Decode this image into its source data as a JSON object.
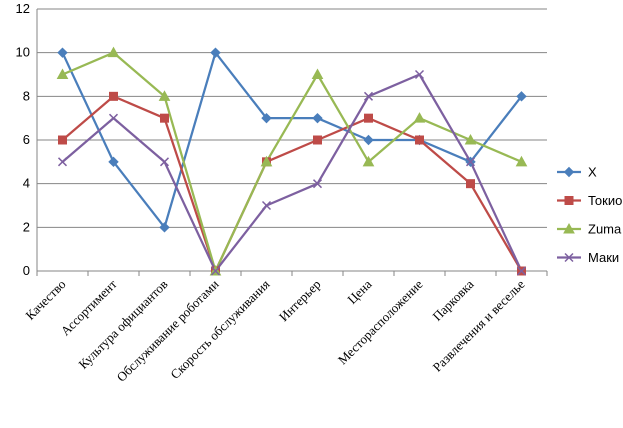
{
  "chart_data": {
    "type": "line",
    "categories": [
      "Качество",
      "Ассортимент",
      "Культура официантов",
      "Обслуживание роботами",
      "Скорость обслуживания",
      "Интерьер",
      "Цена",
      "Месторасположение",
      "Парковка",
      "Развлечения и веселье"
    ],
    "ylim": [
      0,
      12
    ],
    "yticks": [
      0,
      2,
      4,
      6,
      8,
      10,
      12
    ],
    "grid": "horizontal",
    "legend_position": "right",
    "title": "",
    "xlabel": "",
    "ylabel": "",
    "series": [
      {
        "name": "X",
        "color": "#4a7ebb",
        "marker": "diamond",
        "values": [
          10,
          5,
          2,
          10,
          7,
          7,
          6,
          6,
          5,
          8
        ]
      },
      {
        "name": "Токио",
        "color": "#be4b48",
        "marker": "square",
        "values": [
          6,
          8,
          7,
          0,
          5,
          6,
          7,
          6,
          4,
          0
        ]
      },
      {
        "name": "Zuma",
        "color": "#98b954",
        "marker": "triangle",
        "values": [
          9,
          10,
          8,
          0,
          5,
          9,
          5,
          7,
          6,
          5
        ]
      },
      {
        "name": "Маки",
        "color": "#7d60a0",
        "marker": "x",
        "values": [
          5,
          7,
          5,
          0,
          3,
          4,
          8,
          9,
          5,
          0
        ]
      }
    ]
  }
}
